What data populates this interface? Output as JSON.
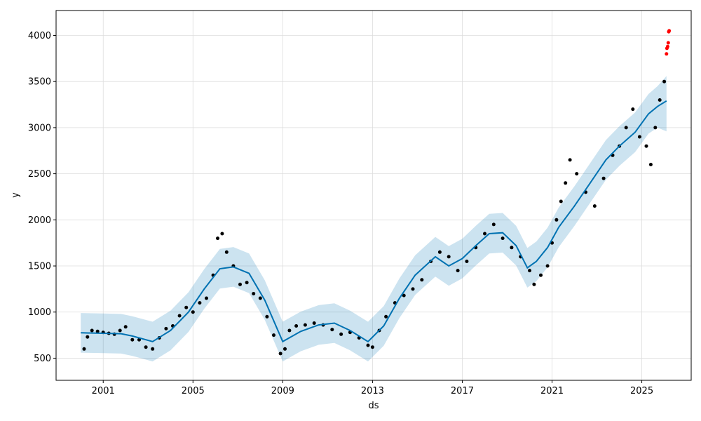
{
  "chart_data": {
    "type": "scatter",
    "title": "",
    "xlabel": "ds",
    "ylabel": "y",
    "xlim": [
      1998.9,
      2027.2
    ],
    "ylim": [
      260,
      4270
    ],
    "grid": true,
    "x_ticks": [
      2001,
      2005,
      2009,
      2013,
      2017,
      2021,
      2025
    ],
    "x_tick_labels": [
      "2001",
      "2005",
      "2009",
      "2013",
      "2017",
      "2021",
      "2025"
    ],
    "y_ticks": [
      500,
      1000,
      1500,
      2000,
      2500,
      3000,
      3500,
      4000
    ],
    "y_tick_labels": [
      "500",
      "1000",
      "1500",
      "2000",
      "2500",
      "3000",
      "3500",
      "4000"
    ],
    "colors": {
      "observed": "#000000",
      "forecast": "#0072B2",
      "interval": "#0072B2",
      "outliers": "#ff0000",
      "grid": "#dddddd"
    },
    "series": [
      {
        "role": "observed",
        "x": [
          2000.15,
          2000.3,
          2000.5,
          2000.75,
          2001.0,
          2001.25,
          2001.5,
          2001.75,
          2002.0,
          2002.3,
          2002.6,
          2002.9,
          2003.2,
          2003.5,
          2003.8,
          2004.1,
          2004.4,
          2004.7,
          2005.0,
          2005.3,
          2005.6,
          2005.9,
          2006.1,
          2006.3,
          2006.5,
          2006.8,
          2007.1,
          2007.4,
          2007.7,
          2008.0,
          2008.3,
          2008.6,
          2008.9,
          2009.1,
          2009.3,
          2009.6,
          2010.0,
          2010.4,
          2010.8,
          2011.2,
          2011.6,
          2012.0,
          2012.4,
          2012.8,
          2013.0,
          2013.3,
          2013.6,
          2014.0,
          2014.4,
          2014.8,
          2015.2,
          2015.6,
          2016.0,
          2016.4,
          2016.8,
          2017.2,
          2017.6,
          2018.0,
          2018.4,
          2018.8,
          2019.2,
          2019.6,
          2020.0,
          2020.2,
          2020.5,
          2020.8,
          2021.0,
          2021.2,
          2021.4,
          2021.6,
          2021.8,
          2022.1,
          2022.5,
          2022.9,
          2023.3,
          2023.7,
          2024.0,
          2024.3,
          2024.6,
          2024.9,
          2025.2,
          2025.4,
          2025.6,
          2025.8,
          2026.0
        ],
        "y": [
          600,
          730,
          800,
          790,
          780,
          770,
          760,
          800,
          840,
          700,
          700,
          620,
          600,
          720,
          820,
          850,
          960,
          1050,
          1000,
          1100,
          1150,
          1400,
          1800,
          1850,
          1650,
          1500,
          1300,
          1320,
          1200,
          1150,
          950,
          750,
          550,
          600,
          800,
          850,
          860,
          880,
          860,
          810,
          760,
          780,
          720,
          640,
          620,
          800,
          950,
          1100,
          1180,
          1250,
          1350,
          1550,
          1650,
          1600,
          1450,
          1550,
          1700,
          1850,
          1950,
          1800,
          1700,
          1600,
          1450,
          1300,
          1400,
          1500,
          1750,
          2000,
          2200,
          2400,
          2650,
          2500,
          2300,
          2150,
          2450,
          2700,
          2800,
          3000,
          3200,
          2900,
          2800,
          2600,
          3000,
          3300,
          3500
        ]
      },
      {
        "role": "forecast",
        "x": [
          2000.0,
          2001.0,
          2001.8,
          2002.3,
          2003.2,
          2004.0,
          2004.8,
          2005.5,
          2006.2,
          2006.8,
          2007.5,
          2008.2,
          2009.0,
          2009.8,
          2010.6,
          2011.3,
          2012.0,
          2012.8,
          2013.5,
          2014.2,
          2014.9,
          2015.8,
          2016.4,
          2017.0,
          2017.6,
          2018.2,
          2018.8,
          2019.4,
          2019.9,
          2020.3,
          2020.8,
          2021.3,
          2022.0,
          2022.7,
          2023.4,
          2024.0,
          2024.7,
          2025.3,
          2025.7,
          2026.1
        ],
        "y": [
          775,
          770,
          765,
          740,
          680,
          800,
          1000,
          1250,
          1470,
          1490,
          1420,
          1130,
          680,
          790,
          860,
          880,
          800,
          680,
          850,
          1150,
          1400,
          1600,
          1500,
          1580,
          1720,
          1850,
          1860,
          1720,
          1480,
          1550,
          1700,
          1920,
          2150,
          2400,
          2650,
          2800,
          2950,
          3150,
          3230,
          3290
        ],
        "lower": [
          560,
          555,
          550,
          525,
          465,
          585,
          785,
          1035,
          1255,
          1275,
          1205,
          915,
          465,
          575,
          645,
          665,
          585,
          465,
          635,
          935,
          1185,
          1385,
          1285,
          1365,
          1505,
          1635,
          1645,
          1505,
          1265,
          1335,
          1485,
          1705,
          1935,
          2185,
          2435,
          2585,
          2735,
          2935,
          3000,
          2960
        ],
        "upper": [
          990,
          985,
          980,
          955,
          895,
          1015,
          1215,
          1465,
          1685,
          1705,
          1635,
          1345,
          895,
          1005,
          1075,
          1095,
          1015,
          895,
          1065,
          1365,
          1615,
          1815,
          1715,
          1795,
          1935,
          2065,
          2075,
          1935,
          1695,
          1765,
          1915,
          2135,
          2365,
          2615,
          2865,
          3015,
          3165,
          3365,
          3450,
          3560
        ]
      },
      {
        "role": "outliers",
        "x": [
          2026.1,
          2026.12,
          2026.15,
          2026.18,
          2026.2,
          2026.22
        ],
        "y": [
          3800,
          3860,
          3880,
          3920,
          4040,
          4050
        ]
      }
    ]
  }
}
